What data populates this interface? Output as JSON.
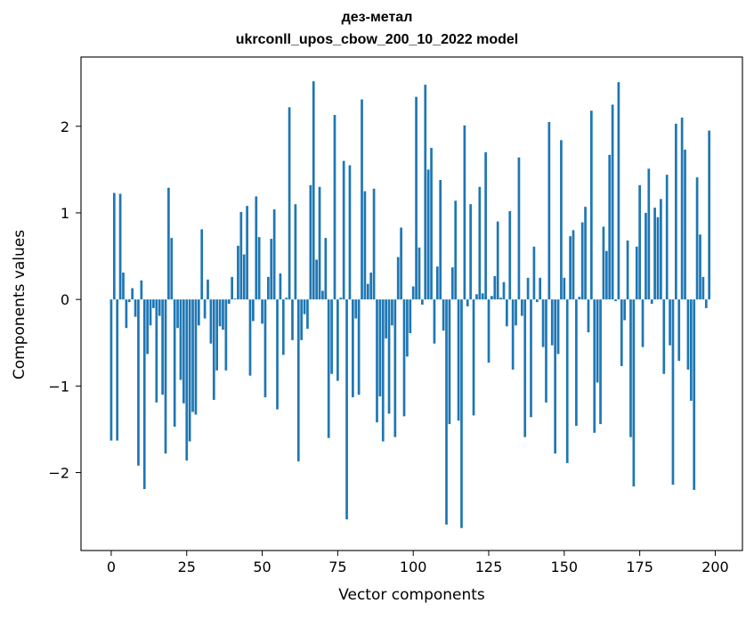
{
  "chart_data": {
    "type": "bar",
    "title": "дез-метал",
    "subtitle": "ukrconll_upos_cbow_200_10_2022 model",
    "xlabel": "Vector components",
    "ylabel": "Components values",
    "xlim": [
      -10,
      209
    ],
    "ylim": [
      -2.9,
      2.8
    ],
    "xticks": [
      0,
      25,
      50,
      75,
      100,
      125,
      150,
      175,
      200
    ],
    "yticks": [
      -2,
      -1,
      0,
      1,
      2
    ],
    "xtick_labels": [
      "0",
      "25",
      "50",
      "75",
      "100",
      "125",
      "150",
      "175",
      "200"
    ],
    "ytick_labels": [
      "−2",
      "−1",
      "0",
      "1",
      "2"
    ],
    "bar_color": "#1f77b4",
    "grid": false,
    "values": [
      -1.63,
      1.23,
      -1.63,
      1.22,
      0.31,
      -0.33,
      -0.03,
      0.13,
      -0.2,
      -1.92,
      0.22,
      -2.19,
      -0.63,
      -0.3,
      -0.1,
      -1.19,
      -0.19,
      -1.1,
      -1.78,
      1.29,
      0.71,
      -1.47,
      -0.33,
      -0.93,
      -1.2,
      -1.86,
      -1.64,
      -1.3,
      -1.33,
      -0.3,
      0.81,
      -0.22,
      0.23,
      -0.51,
      -1.16,
      -0.82,
      -0.31,
      -0.35,
      -0.82,
      -0.05,
      0.26,
      0.01,
      0.62,
      1.01,
      0.52,
      1.08,
      -0.88,
      -0.25,
      1.19,
      0.72,
      -0.28,
      -1.13,
      0.26,
      0.7,
      1.04,
      -1.27,
      0.3,
      -0.64,
      0.02,
      2.22,
      -0.47,
      1.1,
      -1.87,
      -0.47,
      -0.17,
      -0.34,
      1.32,
      2.52,
      0.46,
      1.3,
      0.1,
      0.71,
      -1.6,
      -0.86,
      2.13,
      -0.94,
      0.02,
      1.6,
      -2.54,
      1.55,
      -1.13,
      -0.22,
      -1.1,
      2.31,
      1.25,
      0.18,
      0.31,
      1.28,
      -1.42,
      -1.12,
      -1.64,
      -0.45,
      -1.32,
      -0.3,
      -1.59,
      0.49,
      0.83,
      -1.35,
      -0.66,
      -0.39,
      0.15,
      2.34,
      0.6,
      -0.06,
      2.48,
      1.5,
      1.75,
      -0.51,
      0.38,
      1.38,
      -0.36,
      -2.6,
      -1.44,
      0.37,
      1.14,
      -1.4,
      -2.64,
      2.01,
      -0.08,
      1.1,
      -1.34,
      0.06,
      1.3,
      0.07,
      1.7,
      -0.73,
      0.04,
      0.27,
      0.9,
      0.02,
      0.2,
      -0.31,
      1.02,
      -0.81,
      -0.3,
      1.64,
      -0.19,
      -1.59,
      0.25,
      -1.36,
      0.61,
      -0.03,
      0.25,
      -0.55,
      -1.19,
      2.05,
      -0.53,
      -1.78,
      -0.63,
      1.84,
      0.25,
      -1.89,
      0.73,
      0.8,
      -1.46,
      0.03,
      0.89,
      1.07,
      -0.38,
      2.18,
      -1.54,
      -0.96,
      -1.44,
      0.84,
      0.56,
      1.67,
      2.25,
      -0.02,
      2.51,
      -0.77,
      -0.24,
      0.68,
      -1.59,
      -2.16,
      0.61,
      1.32,
      -0.55,
      1.0,
      1.51,
      -0.05,
      1.06,
      0.95,
      1.16,
      -0.86,
      1.44,
      -0.53,
      -2.14,
      2.03,
      -0.71,
      2.1,
      1.73,
      -0.81,
      -1.17,
      -2.2,
      1.41,
      0.75,
      0.26,
      -0.1,
      1.95
    ]
  }
}
